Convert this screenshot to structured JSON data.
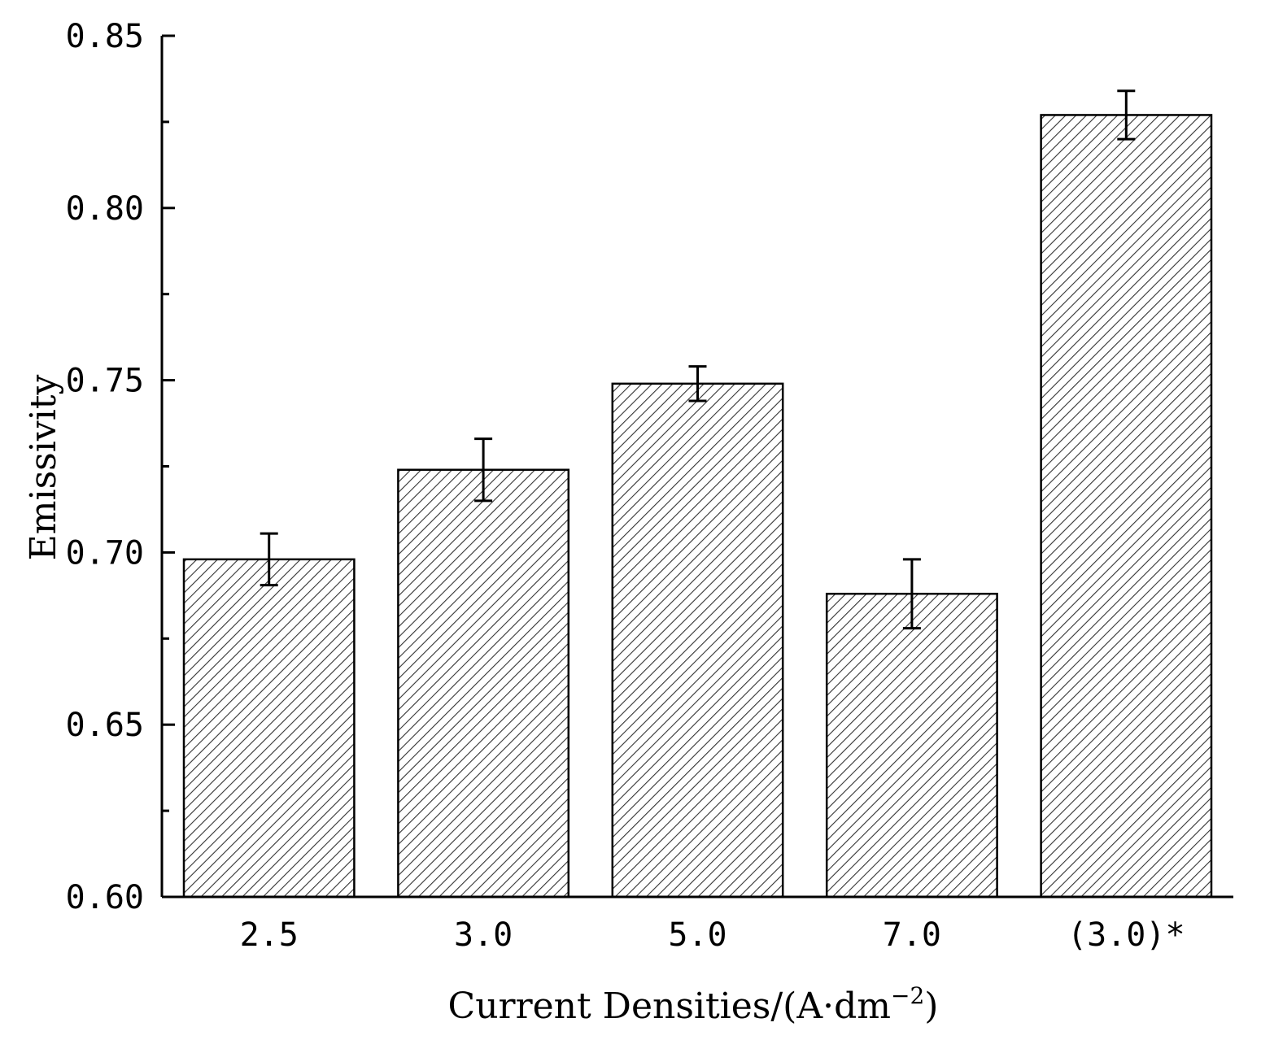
{
  "chart_data": {
    "type": "bar",
    "categories": [
      "2.5",
      "3.0",
      "5.0",
      "7.0",
      "(3.0)*"
    ],
    "values": [
      0.698,
      0.724,
      0.749,
      0.688,
      0.827
    ],
    "errors": [
      0.0075,
      0.009,
      0.005,
      0.01,
      0.007
    ],
    "xlabel": "Current Densities/(A·dm",
    "xlabel_superscript": "−2",
    "xlabel_suffix": ")",
    "ylabel": "Emissivity",
    "ylim": [
      0.6,
      0.85
    ],
    "yticks": [
      "0.60",
      "0.65",
      "0.70",
      "0.75",
      "0.80",
      "0.85"
    ],
    "bar_fill": "hatched",
    "colors": {
      "bar_edge": "#000000",
      "hatch": "#333333",
      "background": "#ffffff"
    },
    "grid": false,
    "legend": "none"
  }
}
